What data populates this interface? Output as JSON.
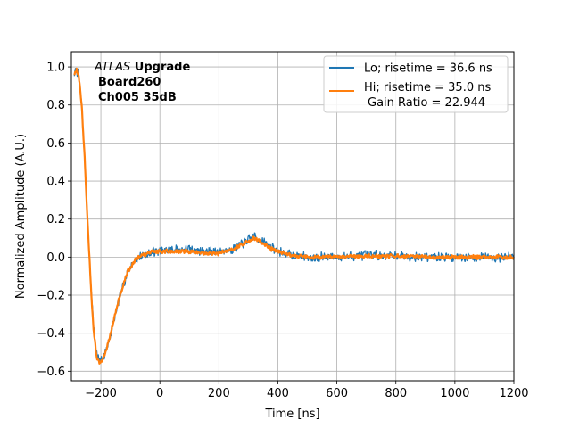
{
  "chart_data": {
    "type": "line",
    "title": "",
    "xlabel": "Time [ns]",
    "ylabel": "Normalized Amplitude (A.U.)",
    "xlim": [
      -300,
      1200
    ],
    "ylim": [
      -0.65,
      1.08
    ],
    "x_ticks": [
      -200,
      0,
      200,
      400,
      600,
      800,
      1000,
      1200
    ],
    "x_tick_labels": [
      "−200",
      "0",
      "200",
      "400",
      "600",
      "800",
      "1000",
      "1200"
    ],
    "y_ticks": [
      -0.6,
      -0.4,
      -0.2,
      0.0,
      0.2,
      0.4,
      0.6,
      0.8,
      1.0
    ],
    "y_tick_labels": [
      "−0.6",
      "−0.4",
      "−0.2",
      "0.0",
      "0.2",
      "0.4",
      "0.6",
      "0.8",
      "1.0"
    ],
    "grid": true,
    "legend_position": "top-right",
    "annotation": {
      "italic": "ATLAS",
      "bold_suffix": " Upgrade",
      "line2": "Board260",
      "line3": "Ch005 35dB"
    },
    "series": [
      {
        "name": "Lo; risetime = 36.6 ns",
        "color": "#1f77b4",
        "noise": 0.028,
        "seed": 7,
        "points": [
          [
            -290,
            0.96
          ],
          [
            -283,
            0.99
          ],
          [
            -275,
            0.95
          ],
          [
            -265,
            0.8
          ],
          [
            -255,
            0.52
          ],
          [
            -245,
            0.18
          ],
          [
            -235,
            -0.12
          ],
          [
            -225,
            -0.36
          ],
          [
            -215,
            -0.5
          ],
          [
            -205,
            -0.55
          ],
          [
            -195,
            -0.54
          ],
          [
            -185,
            -0.5
          ],
          [
            -170,
            -0.43
          ],
          [
            -155,
            -0.33
          ],
          [
            -140,
            -0.24
          ],
          [
            -125,
            -0.15
          ],
          [
            -110,
            -0.08
          ],
          [
            -95,
            -0.04
          ],
          [
            -80,
            -0.01
          ],
          [
            -60,
            0.01
          ],
          [
            -40,
            0.02
          ],
          [
            -20,
            0.03
          ],
          [
            0,
            0.03
          ],
          [
            50,
            0.04
          ],
          [
            100,
            0.04
          ],
          [
            150,
            0.03
          ],
          [
            200,
            0.03
          ],
          [
            240,
            0.04
          ],
          [
            270,
            0.06
          ],
          [
            300,
            0.09
          ],
          [
            320,
            0.11
          ],
          [
            340,
            0.09
          ],
          [
            370,
            0.06
          ],
          [
            400,
            0.03
          ],
          [
            450,
            0.01
          ],
          [
            500,
            0.0
          ],
          [
            600,
            0.0
          ],
          [
            700,
            0.01
          ],
          [
            800,
            0.01
          ],
          [
            900,
            0.0
          ],
          [
            1000,
            0.0
          ],
          [
            1100,
            0.0
          ],
          [
            1200,
            0.0
          ]
        ]
      },
      {
        "name": "Hi; risetime = 35.0 ns",
        "name_line2": "Gain Ratio = 22.944",
        "color": "#ff7f0e",
        "noise": 0.012,
        "seed": 13,
        "points": [
          [
            -290,
            0.96
          ],
          [
            -283,
            0.99
          ],
          [
            -275,
            0.95
          ],
          [
            -265,
            0.8
          ],
          [
            -255,
            0.52
          ],
          [
            -245,
            0.18
          ],
          [
            -235,
            -0.12
          ],
          [
            -225,
            -0.38
          ],
          [
            -215,
            -0.52
          ],
          [
            -205,
            -0.56
          ],
          [
            -195,
            -0.55
          ],
          [
            -185,
            -0.5
          ],
          [
            -170,
            -0.42
          ],
          [
            -155,
            -0.32
          ],
          [
            -140,
            -0.23
          ],
          [
            -125,
            -0.15
          ],
          [
            -110,
            -0.08
          ],
          [
            -95,
            -0.04
          ],
          [
            -80,
            -0.01
          ],
          [
            -60,
            0.01
          ],
          [
            -40,
            0.02
          ],
          [
            -20,
            0.03
          ],
          [
            0,
            0.03
          ],
          [
            50,
            0.03
          ],
          [
            100,
            0.03
          ],
          [
            150,
            0.02
          ],
          [
            200,
            0.02
          ],
          [
            240,
            0.04
          ],
          [
            270,
            0.06
          ],
          [
            300,
            0.085
          ],
          [
            320,
            0.1
          ],
          [
            340,
            0.08
          ],
          [
            370,
            0.05
          ],
          [
            400,
            0.03
          ],
          [
            450,
            0.01
          ],
          [
            500,
            0.0
          ],
          [
            600,
            0.0
          ],
          [
            700,
            0.005
          ],
          [
            800,
            0.005
          ],
          [
            900,
            0.0
          ],
          [
            1000,
            0.0
          ],
          [
            1100,
            0.0
          ],
          [
            1200,
            0.0
          ]
        ]
      }
    ]
  }
}
